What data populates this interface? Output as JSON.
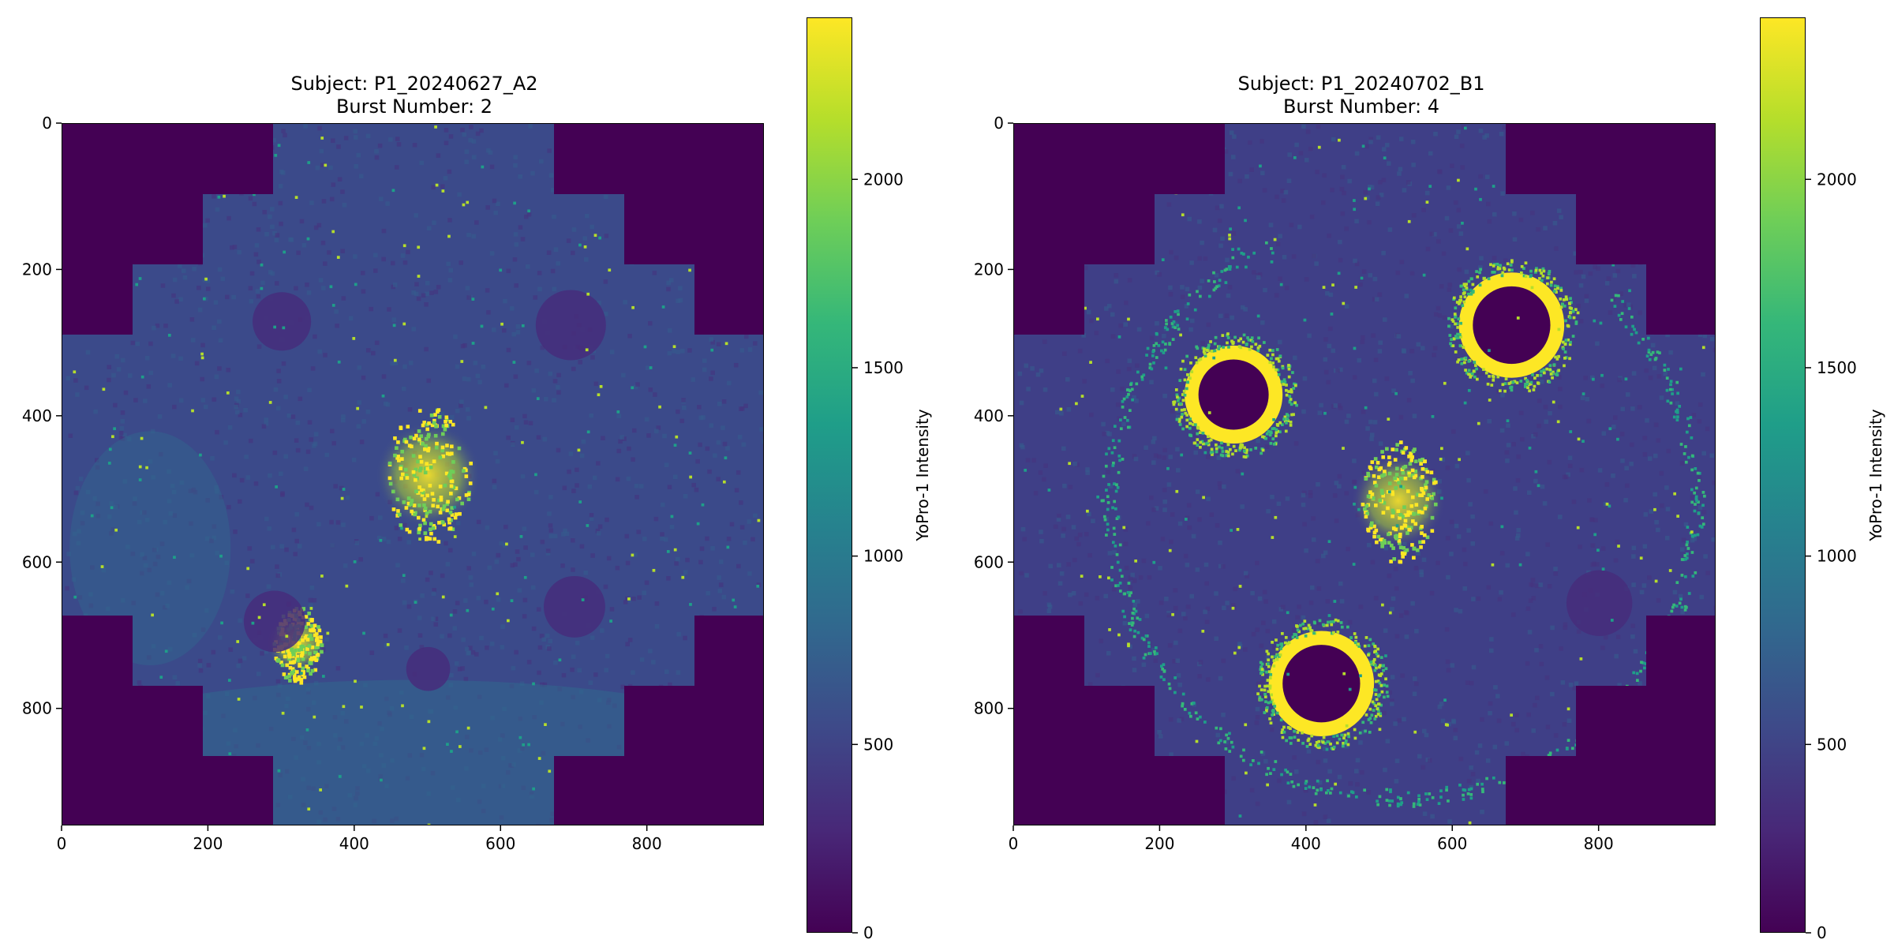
{
  "chart_data": [
    {
      "type": "heatmap",
      "title_line1": "Subject: P1_20240627_A2",
      "title_line2": "Burst Number: 2",
      "xlim": [
        0,
        960
      ],
      "ylim": [
        960,
        0
      ],
      "x_ticks": [
        0,
        200,
        400,
        600,
        800
      ],
      "y_ticks": [
        0,
        200,
        400,
        600,
        800
      ],
      "colorbar": {
        "label": "YoPro-1 Intensity",
        "colormap": "viridis",
        "range": [
          0,
          2430
        ],
        "ticks": [
          0,
          500,
          1000,
          1500,
          2000
        ]
      },
      "features": [
        {
          "kind": "bright-cluster",
          "cx": 500,
          "cy": 480,
          "r": 45
        },
        {
          "kind": "bright-cluster",
          "cx": 320,
          "cy": 710,
          "r": 25
        },
        {
          "kind": "dark-well",
          "cx": 300,
          "cy": 270,
          "r": 40
        },
        {
          "kind": "dark-well",
          "cx": 695,
          "cy": 275,
          "r": 48
        },
        {
          "kind": "dark-well",
          "cx": 290,
          "cy": 680,
          "r": 42
        },
        {
          "kind": "dark-well",
          "cx": 700,
          "cy": 660,
          "r": 42
        },
        {
          "kind": "dark-well",
          "cx": 500,
          "cy": 745,
          "r": 30
        }
      ]
    },
    {
      "type": "heatmap",
      "title_line1": "Subject: P1_20240702_B1",
      "title_line2": "Burst Number: 4",
      "xlim": [
        0,
        960
      ],
      "ylim": [
        960,
        0
      ],
      "x_ticks": [
        0,
        200,
        400,
        600,
        800
      ],
      "y_ticks": [
        0,
        200,
        400,
        600,
        800
      ],
      "colorbar": {
        "label": "YoPro-1 Intensity",
        "colormap": "viridis",
        "range": [
          0,
          2430
        ],
        "ticks": [
          0,
          500,
          1000,
          1500,
          2000
        ]
      },
      "features": [
        {
          "kind": "bright-cluster",
          "cx": 525,
          "cy": 515,
          "r": 40
        },
        {
          "kind": "bright-ring",
          "cx": 300,
          "cy": 370,
          "r": 50
        },
        {
          "kind": "bright-ring",
          "cx": 680,
          "cy": 275,
          "r": 55
        },
        {
          "kind": "bright-ring",
          "cx": 420,
          "cy": 765,
          "r": 55
        },
        {
          "kind": "dark-well",
          "cx": 800,
          "cy": 655,
          "r": 45
        },
        {
          "kind": "dashed-arc",
          "cx": 530,
          "cy": 520,
          "r": 400
        }
      ]
    }
  ],
  "colors": {
    "background_purple": "#440154",
    "viridis": [
      "#440154",
      "#482878",
      "#3e4989",
      "#31688e",
      "#26828e",
      "#1f9e89",
      "#35b779",
      "#6ece58",
      "#b5de2b",
      "#fde725"
    ]
  }
}
